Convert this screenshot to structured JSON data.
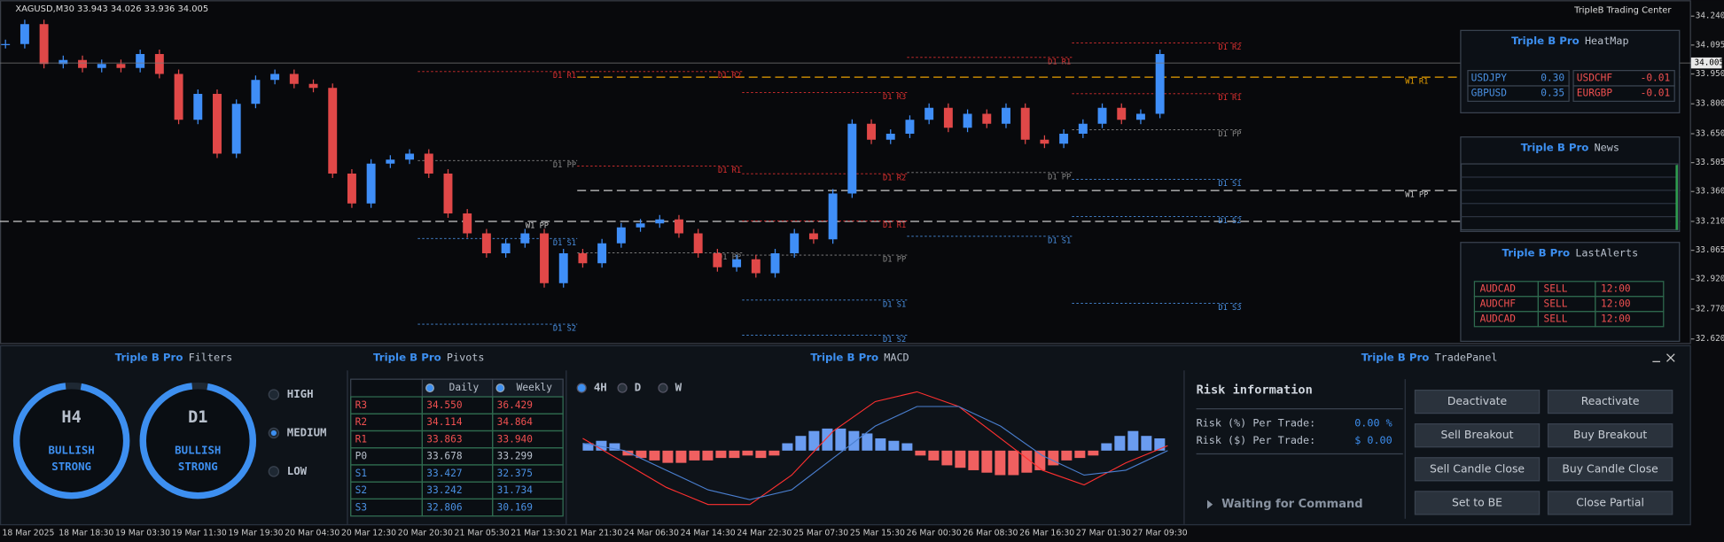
{
  "window": {
    "symbol": "XAGUSD,M30  33.943 34.026 33.936 34.005",
    "brand": "TripleB Trading Center"
  },
  "chart_data": {
    "type": "candlestick",
    "closes": [
      34.1,
      34.2,
      34.0,
      34.02,
      33.98,
      34.0,
      33.98,
      34.05,
      33.95,
      33.72,
      33.85,
      33.55,
      33.8,
      33.92,
      33.95,
      33.9,
      33.88,
      33.45,
      33.3,
      33.5,
      33.52,
      33.55,
      33.45,
      33.25,
      33.15,
      33.05,
      33.1,
      33.15,
      32.9,
      33.05,
      33.0,
      33.1,
      33.18,
      33.2,
      33.22,
      33.15,
      33.05,
      32.98,
      33.02,
      32.95,
      33.05,
      33.15,
      33.12,
      33.35,
      33.7,
      33.62,
      33.65,
      33.72,
      33.78,
      33.68,
      33.75,
      33.7,
      33.78,
      33.62,
      33.6,
      33.65,
      33.7,
      33.78,
      33.72,
      33.75,
      34.05
    ],
    "up_color": "#3f8ef7",
    "down_color": "#e04848",
    "ylim": [
      32.6,
      34.32
    ],
    "yticks": [
      {
        "value": 34.24,
        "label": "34.240"
      },
      34.095,
      {
        "value": 33.95,
        "label": "33.950"
      },
      {
        "value": 33.8,
        "label": "33.800"
      },
      {
        "value": 33.65,
        "label": "33.650"
      },
      33.505,
      {
        "value": 33.36,
        "label": "33.360"
      },
      {
        "value": 33.21,
        "label": "33.210"
      },
      33.065,
      {
        "value": 32.92,
        "label": "32.920"
      },
      {
        "value": 32.77,
        "label": "32.770"
      },
      {
        "value": 32.62,
        "label": "32.620"
      }
    ],
    "current": 34.005,
    "xlabels": [
      "18 Mar 2025",
      "18 Mar 18:30",
      "19 Mar 03:30",
      "19 Mar 11:30",
      "19 Mar 19:30",
      "20 Mar 04:30",
      "20 Mar 12:30",
      "20 Mar 20:30",
      "21 Mar 05:30",
      "21 Mar 13:30",
      "21 Mar 21:30",
      "24 Mar 06:30",
      "24 Mar 14:30",
      "24 Mar 22:30",
      "25 Mar 07:30",
      "25 Mar 15:30",
      "26 Mar 00:30",
      "26 Mar 08:30",
      "26 Mar 16:30",
      "27 Mar 01:30",
      "27 Mar 09:30"
    ],
    "levels": [
      {
        "label": "W1 R1",
        "value": 33.934,
        "color": "#e8a000"
      },
      {
        "label": "W1 PP",
        "value": 33.365,
        "color": "#cccccc"
      },
      {
        "label": "W1 PP",
        "value": 33.21,
        "color": "#cccccc"
      },
      {
        "label": "D1 R1",
        "value": 33.962,
        "color": "#e03030"
      },
      {
        "label": "D1 PP",
        "value": 33.515,
        "color": "#888888"
      },
      {
        "label": "D1 S1",
        "value": 33.124,
        "color": "#4a90e2"
      },
      {
        "label": "D1 S2",
        "value": 32.694,
        "color": "#4a90e2"
      },
      {
        "label": "D1 R2",
        "value": 33.962,
        "color": "#e03030"
      },
      {
        "label": "D1 R1",
        "value": 33.488,
        "color": "#e03030"
      },
      {
        "label": "D1 PP",
        "value": 33.052,
        "color": "#888888"
      },
      {
        "label": "D1 R3",
        "value": 33.857,
        "color": "#e03030"
      },
      {
        "label": "D1 R2",
        "value": 33.449,
        "color": "#e03030"
      },
      {
        "label": "D1 R1",
        "value": 33.212,
        "color": "#e03030"
      },
      {
        "label": "D1 PP",
        "value": 33.041,
        "color": "#888888"
      },
      {
        "label": "D1 S1",
        "value": 32.815,
        "color": "#4a90e2"
      },
      {
        "label": "D1 S2",
        "value": 32.639,
        "color": "#4a90e2"
      },
      {
        "label": "D1 R1",
        "value": 34.033,
        "color": "#e03030"
      },
      {
        "label": "D1 PP",
        "value": 33.455,
        "color": "#888888"
      },
      {
        "label": "D1 S1",
        "value": 33.135,
        "color": "#4a90e2"
      },
      {
        "label": "D1 R2",
        "value": 34.105,
        "color": "#e03030"
      },
      {
        "label": "D1 R1",
        "value": 33.851,
        "color": "#e03030"
      },
      {
        "label": "D1 PP",
        "value": 33.67,
        "color": "#888888"
      },
      {
        "label": "D1 S1",
        "value": 33.421,
        "color": "#4a90e2"
      },
      {
        "label": "D1 S2",
        "value": 33.234,
        "color": "#4a90e2"
      },
      {
        "label": "D1 S3",
        "value": 32.799,
        "color": "#4a90e2"
      }
    ]
  },
  "macd": {
    "hist": [
      0.3,
      0.4,
      0.3,
      -0.2,
      -0.3,
      -0.4,
      -0.5,
      -0.5,
      -0.4,
      -0.4,
      -0.3,
      -0.3,
      -0.2,
      -0.3,
      -0.2,
      0.3,
      0.6,
      0.8,
      0.9,
      0.9,
      0.8,
      0.7,
      0.5,
      0.4,
      0.3,
      -0.2,
      -0.4,
      -0.6,
      -0.7,
      -0.8,
      -0.9,
      -1.0,
      -1.0,
      -0.9,
      -0.8,
      -0.6,
      -0.4,
      -0.3,
      -0.2,
      0.3,
      0.6,
      0.8,
      0.6,
      0.5
    ],
    "main": [
      0.5,
      -0.5,
      -1.5,
      -2.2,
      -2.2,
      -1.0,
      0.8,
      2.0,
      2.4,
      1.8,
      0.5,
      -0.8,
      -1.4,
      -0.5,
      0.2
    ],
    "signal": [
      0.3,
      0.0,
      -0.8,
      -1.6,
      -2.0,
      -1.6,
      -0.3,
      1.0,
      1.8,
      1.8,
      1.0,
      -0.2,
      -1.0,
      -0.8,
      0.0
    ],
    "ylim": [
      -2.6,
      2.6
    ],
    "up_color": "#6a9cf0",
    "down_color": "#f06060",
    "main_color": "#ff3030",
    "signal_color": "#4a7fd0",
    "timeframes": [
      "4H",
      "D",
      "W"
    ]
  },
  "panels": {
    "filters": {
      "brand": "Triple B Pro",
      "name": "Filters",
      "gauges": [
        {
          "tf": "H4",
          "bias": "BULLISH",
          "strength": "STRONG"
        },
        {
          "tf": "D1",
          "bias": "BULLISH",
          "strength": "STRONG"
        }
      ],
      "options": [
        "HIGH",
        "MEDIUM",
        "LOW"
      ]
    },
    "pivots": {
      "brand": "Triple B Pro",
      "name": "Pivots",
      "headers": [
        "Daily",
        "Weekly"
      ],
      "rows": [
        [
          "R3",
          "34.550",
          "36.429"
        ],
        [
          "R2",
          "34.114",
          "34.864"
        ],
        [
          "R1",
          "33.863",
          "33.940"
        ],
        [
          "P0",
          "33.678",
          "33.299"
        ],
        [
          "S1",
          "33.427",
          "32.375"
        ],
        [
          "S2",
          "33.242",
          "31.734"
        ],
        [
          "S3",
          "32.806",
          "30.169"
        ]
      ]
    },
    "macd": {
      "brand": "Triple B Pro",
      "name": "MACD"
    },
    "trade": {
      "brand": "Triple B Pro",
      "name": "TradePanel",
      "heading": "Risk information",
      "risk_pct_label": "Risk (%) Per Trade:",
      "risk_pct": "0.00 %",
      "risk_usd_label": "Risk ($) Per Trade:",
      "risk_usd": "$ 0.00",
      "status": "Waiting for Command",
      "buttons": [
        "Deactivate",
        "Reactivate",
        "Sell Breakout",
        "Buy Breakout",
        "Sell Candle Close",
        "Buy Candle Close",
        "Set to BE",
        "Close Partial"
      ]
    },
    "heatmap": {
      "brand": "Triple B Pro",
      "name": "HeatMap",
      "cells": [
        [
          "USDJPY",
          "0.30"
        ],
        [
          "USDCHF",
          "-0.01"
        ],
        [
          "GBPUSD",
          "0.35"
        ],
        [
          "EURGBP",
          "-0.01"
        ]
      ]
    },
    "news": {
      "brand": "Triple B Pro",
      "name": "News"
    },
    "alerts": {
      "brand": "Triple B Pro",
      "name": "LastAlerts",
      "rows": [
        [
          "AUDCAD",
          "SELL",
          "12:00"
        ],
        [
          "AUDCHF",
          "SELL",
          "12:00"
        ],
        [
          "AUDCAD",
          "SELL",
          "12:00"
        ]
      ]
    }
  }
}
